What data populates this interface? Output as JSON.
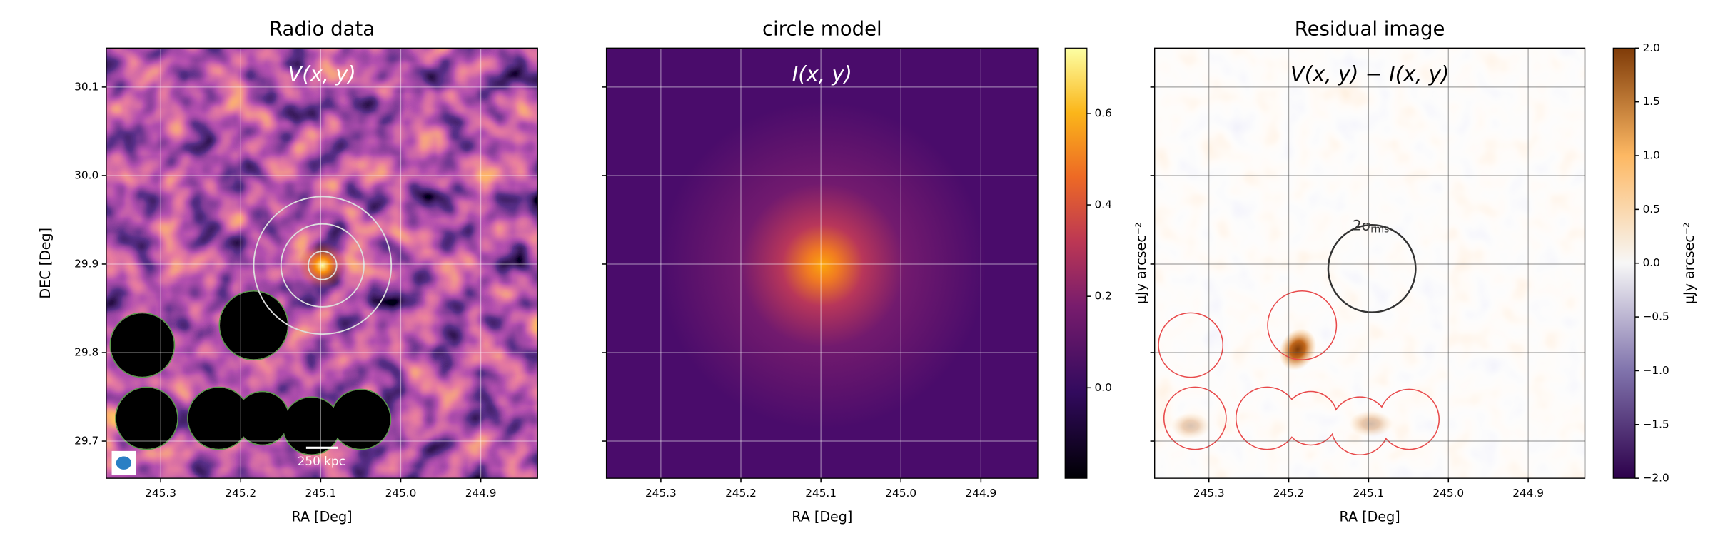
{
  "chart_data": [
    {
      "type": "image",
      "title": "Radio data",
      "annotation": "V(x, y)",
      "scale_bar": "250 kpc",
      "xlabel": "RA [Deg]",
      "ylabel": "DEC [Deg]",
      "xlim": [
        245.368,
        244.829
      ],
      "xticks": [
        245.3,
        245.2,
        245.1,
        {
          "value": 245,
          "label": "245.0"
        },
        244.9
      ],
      "ylim": [
        29.658,
        30.144
      ],
      "yticks": [
        29.7,
        29.8,
        29.9,
        {
          "value": 30,
          "label": "30.0"
        },
        30.1
      ],
      "grid": true
    },
    {
      "type": "image",
      "title": "circle model",
      "annotation": "I(x, y)",
      "xlabel": "RA [Deg]",
      "xlim": [
        245.368,
        244.829
      ],
      "xticks": [
        245.3,
        245.2,
        245.1,
        {
          "value": 245,
          "label": "245.0"
        },
        244.9
      ],
      "grid": true,
      "colorbar": {
        "label": "μJy arcsec⁻²",
        "lim": [
          -0.198,
          0.743
        ],
        "ticks": [
          {
            "value": 0,
            "label": "0.0"
          },
          0.2,
          0.4,
          0.6
        ]
      }
    },
    {
      "type": "image",
      "title": "Residual image",
      "annotation": "V(x, y) − I(x, y)",
      "circle_label": "2σ",
      "circle_label_sub": "rms",
      "xlabel": "RA [Deg]",
      "xlim": [
        245.368,
        244.829
      ],
      "xticks": [
        245.3,
        245.2,
        245.1,
        {
          "value": 245,
          "label": "245.0"
        },
        244.9
      ],
      "grid": true,
      "colorbar": {
        "label": "μJy arcsec⁻²",
        "lim": [
          -2,
          2
        ],
        "ticks": [
          {
            "value": -2,
            "label": "−2.0"
          },
          {
            "value": -1.5,
            "label": "−1.5"
          },
          {
            "value": -1,
            "label": "−1.0"
          },
          {
            "value": -0.5,
            "label": "−0.5"
          },
          {
            "value": 0,
            "label": "0.0"
          },
          0.5,
          {
            "value": 1,
            "label": "1.0"
          },
          1.5,
          {
            "value": 2,
            "label": "2.0"
          }
        ]
      }
    }
  ]
}
